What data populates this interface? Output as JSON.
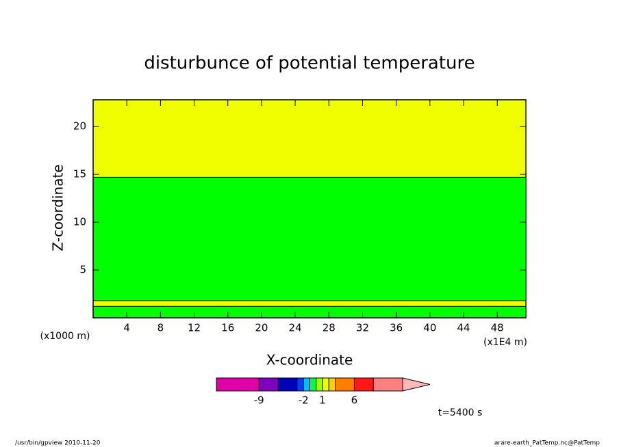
{
  "chart_data": {
    "type": "contour",
    "title": "disturbunce of potential temperature",
    "xlabel": "X-coordinate",
    "ylabel": "Z-coordinate",
    "xunit": "(x1E4 m)",
    "yunit": "(x1000 m)",
    "xlim": [
      0,
      51.4
    ],
    "ylim": [
      0,
      22.8
    ],
    "xticks": [
      4,
      8,
      12,
      16,
      20,
      24,
      28,
      32,
      36,
      40,
      44,
      48
    ],
    "yticks": [
      5,
      10,
      15,
      20
    ],
    "bands": [
      {
        "zmin": 0,
        "zmax": 1.2,
        "color": "#00ff00"
      },
      {
        "zmin": 1.2,
        "zmax": 1.8,
        "color": "#f0ff00"
      },
      {
        "zmin": 1.8,
        "zmax": 14.7,
        "color": "#00ff00"
      },
      {
        "zmin": 14.7,
        "zmax": 22.8,
        "color": "#f0ff00"
      }
    ],
    "colorbar": {
      "lim": [
        -15.7,
        13.6
      ],
      "levels": [
        -9,
        -6,
        -3,
        -2,
        -1,
        0,
        1,
        2,
        3,
        6,
        9
      ],
      "colors": [
        "#e000a8",
        "#8000c0",
        "#0000b8",
        "#0040ff",
        "#00c0ff",
        "#00ff40",
        "#a0ff00",
        "#f0ff00",
        "#ffd000",
        "#ff8000",
        "#ff1818",
        "#ff8080"
      ],
      "extend_color": "#ffb8b8",
      "ticks": [
        -9,
        -2,
        1,
        6
      ]
    },
    "annotation": "t=5400 s",
    "footer": [
      "/usr/bin/gpview  2010-11-20",
      "arare-earth_PatTemp.nc@PatTemp"
    ]
  }
}
